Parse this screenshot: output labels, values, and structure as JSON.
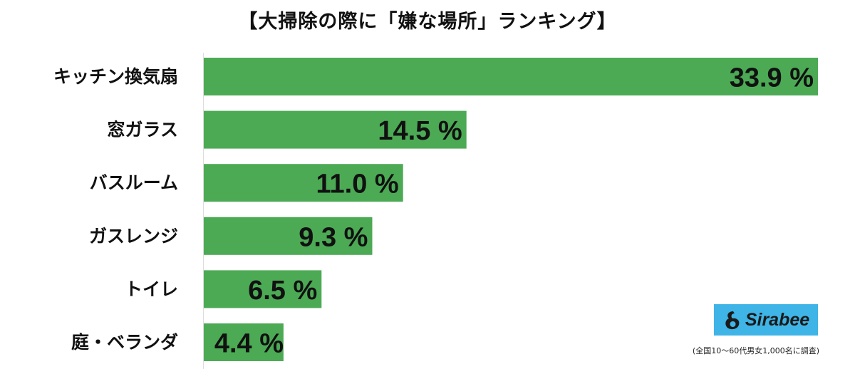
{
  "chart_data": {
    "type": "bar",
    "orientation": "horizontal",
    "title": "【大掃除の際に「嫌な場所」ランキング】",
    "categories": [
      "キッチン換気扇",
      "窓ガラス",
      "バスルーム",
      "ガスレンジ",
      "トイレ",
      "庭・ベランダ"
    ],
    "values": [
      33.9,
      14.5,
      11.0,
      9.3,
      6.5,
      4.4
    ],
    "data_labels": [
      "33.9 %",
      "14.5 %",
      "11.0 %",
      "9.3 %",
      "6.5 %",
      "4.4 %"
    ],
    "xlim": [
      0,
      33.9
    ],
    "grid": false,
    "legend": "none",
    "bar_color": "#4caa55"
  },
  "logo": {
    "text": "Sirabee",
    "background": "#3fb4e6"
  },
  "footnote": "(全国10〜60代男女1,000名に調査)"
}
